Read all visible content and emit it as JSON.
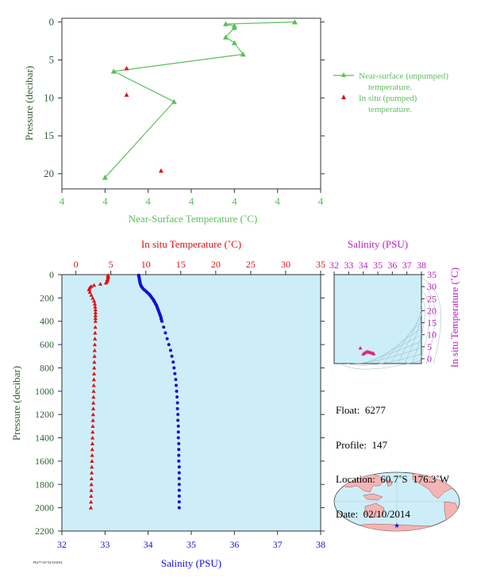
{
  "float_info": {
    "float": "Float:  6277",
    "profile": "Profile:  147",
    "location": "Location:  60.7˚S  176.3˚W",
    "date": "Date:  02/10/2014"
  },
  "footer": {
    "figure_id": "F6277/147 02/10/2014"
  },
  "colors": {
    "green": "#5bbf5b",
    "red": "#e01010",
    "blue": "#1010d8",
    "magenta": "#c020c0",
    "panel_bg": "#cdeef8",
    "axis_text": "#2f5f2f"
  },
  "chart_data": [
    {
      "type": "line",
      "id": "near-surface",
      "xlabel": "Near-Surface Temperature (˚C)",
      "ylabel": "Pressure (decibar)",
      "x_tick_labels": [
        "4",
        "4",
        "4",
        "4",
        "4",
        "4",
        "4"
      ],
      "y_ticks": [
        0,
        5,
        10,
        15,
        20
      ],
      "ylim": [
        22,
        -0.5
      ],
      "xlim": [
        4.6,
        4.9
      ],
      "legend_placement": "right",
      "series": [
        {
          "name": "Near-surface (unpumped) temperature.",
          "marker": "triangle-line",
          "points": [
            [
              4.87,
              0.0
            ],
            [
              4.79,
              0.25
            ],
            [
              4.8,
              0.5
            ],
            [
              4.8,
              0.75
            ],
            [
              4.79,
              2.0
            ],
            [
              4.8,
              2.75
            ],
            [
              4.81,
              4.25
            ],
            [
              4.66,
              6.5
            ],
            [
              4.73,
              10.5
            ],
            [
              4.65,
              20.5
            ]
          ]
        },
        {
          "name": "In situ (pumped) temperature.",
          "marker": "triangle",
          "points": [
            [
              4.675,
              6.1
            ],
            [
              4.675,
              9.6
            ],
            [
              4.715,
              19.6
            ]
          ]
        }
      ]
    },
    {
      "type": "scatter",
      "id": "profile",
      "ylabel": "Pressure (decibar)",
      "ylim": [
        2200,
        0
      ],
      "y_ticks": [
        0,
        200,
        400,
        600,
        800,
        1000,
        1200,
        1400,
        1600,
        1800,
        2000,
        2200
      ],
      "temperature_axis": {
        "label": "In situ Temperature (˚C)",
        "lim": [
          -2,
          35
        ],
        "ticks": [
          0,
          5,
          10,
          15,
          20,
          25,
          30,
          35
        ]
      },
      "salinity_axis": {
        "label": "Salinity (PSU)",
        "lim": [
          32,
          38
        ],
        "ticks": [
          32,
          33,
          34,
          35,
          36,
          37,
          38
        ]
      },
      "temperature": {
        "pressure": [
          5,
          10,
          20,
          30,
          40,
          50,
          60,
          70,
          80,
          90,
          100,
          110,
          120,
          130,
          150,
          175,
          200,
          225,
          250,
          275,
          300,
          325,
          350,
          375,
          400,
          450,
          500,
          550,
          600,
          650,
          700,
          750,
          800,
          850,
          900,
          950,
          1000,
          1050,
          1100,
          1150,
          1200,
          1250,
          1300,
          1350,
          1400,
          1450,
          1500,
          1550,
          1600,
          1650,
          1700,
          1750,
          1800,
          1850,
          1900,
          1950,
          2000
        ],
        "values": [
          4.6,
          4.6,
          4.6,
          4.6,
          4.5,
          4.5,
          4.4,
          4.3,
          3.5,
          2.6,
          2.2,
          2.0,
          1.9,
          1.9,
          2.0,
          2.2,
          2.4,
          2.6,
          2.7,
          2.75,
          2.8,
          2.8,
          2.8,
          2.8,
          2.8,
          2.78,
          2.75,
          2.73,
          2.7,
          2.68,
          2.66,
          2.64,
          2.62,
          2.6,
          2.58,
          2.56,
          2.54,
          2.52,
          2.5,
          2.48,
          2.46,
          2.44,
          2.42,
          2.4,
          2.38,
          2.36,
          2.34,
          2.32,
          2.3,
          2.28,
          2.26,
          2.24,
          2.22,
          2.2,
          2.18,
          2.16,
          2.14
        ]
      },
      "salinity": {
        "pressure": [
          5,
          10,
          20,
          30,
          40,
          50,
          60,
          70,
          80,
          90,
          100,
          110,
          120,
          130,
          140,
          150,
          160,
          170,
          180,
          190,
          200,
          210,
          220,
          230,
          240,
          250,
          260,
          270,
          280,
          290,
          300,
          310,
          320,
          330,
          340,
          350,
          360,
          370,
          380,
          390,
          400,
          450,
          500,
          550,
          600,
          650,
          700,
          750,
          800,
          850,
          900,
          950,
          1000,
          1050,
          1100,
          1150,
          1200,
          1250,
          1300,
          1350,
          1400,
          1450,
          1500,
          1550,
          1600,
          1650,
          1700,
          1750,
          1800,
          1850,
          1900,
          1950,
          2000
        ],
        "values": [
          33.78,
          33.78,
          33.79,
          33.79,
          33.8,
          33.8,
          33.81,
          33.81,
          33.82,
          33.83,
          33.84,
          33.86,
          33.88,
          33.91,
          33.94,
          33.97,
          34.0,
          34.03,
          34.05,
          34.07,
          34.09,
          34.11,
          34.13,
          34.14,
          34.16,
          34.17,
          34.19,
          34.2,
          34.21,
          34.22,
          34.23,
          34.24,
          34.25,
          34.26,
          34.27,
          34.28,
          34.29,
          34.3,
          34.3,
          34.31,
          34.32,
          34.36,
          34.4,
          34.44,
          34.48,
          34.52,
          34.55,
          34.58,
          34.6,
          34.62,
          34.64,
          34.65,
          34.66,
          34.67,
          34.68,
          34.68,
          34.69,
          34.69,
          34.7,
          34.7,
          34.7,
          34.71,
          34.71,
          34.71,
          34.71,
          34.72,
          34.72,
          34.72,
          34.72,
          34.72,
          34.72,
          34.72,
          34.72
        ]
      }
    },
    {
      "type": "scatter",
      "id": "ts-diagram",
      "xlabel": "Salinity (PSU)",
      "ylabel": "In situ Temperature (˚C)",
      "xlim": [
        32,
        38
      ],
      "ylim": [
        -2,
        35
      ],
      "x_ticks": [
        32,
        33,
        34,
        35,
        36,
        37,
        38
      ],
      "y_ticks": [
        0,
        5,
        10,
        15,
        20,
        25,
        30,
        35
      ],
      "points": [
        [
          33.8,
          4.5
        ],
        [
          34.0,
          2.0
        ],
        [
          34.2,
          2.8
        ],
        [
          34.3,
          3.0
        ],
        [
          34.4,
          2.8
        ],
        [
          34.5,
          2.6
        ],
        [
          34.6,
          2.4
        ],
        [
          34.7,
          2.2
        ],
        [
          34.72,
          2.1
        ],
        [
          34.1,
          2.5
        ]
      ]
    },
    {
      "type": "map",
      "id": "location-map",
      "marker": {
        "lat": -60.7,
        "lon": -176.3
      }
    }
  ]
}
